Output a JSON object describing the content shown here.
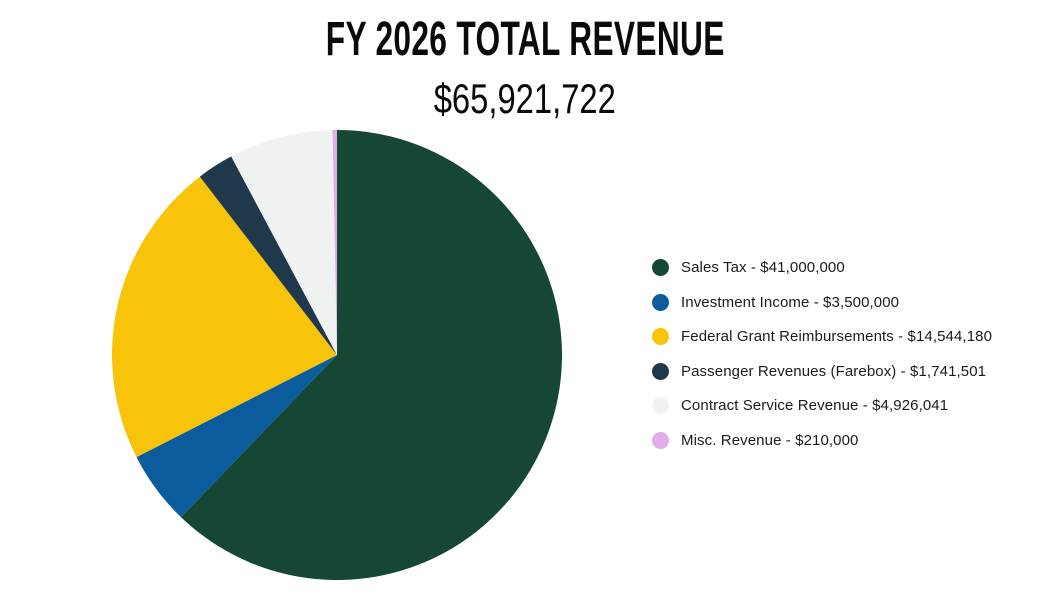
{
  "page": {
    "background": "#ffffff"
  },
  "chart_data": {
    "type": "pie",
    "title": "FY 2026 TOTAL REVENUE",
    "subtitle": "$65,921,722",
    "total": 65921722,
    "start_angle_deg": 0,
    "direction": "clockwise",
    "legend_position": "right",
    "slices": [
      {
        "label": "Sales Tax",
        "value": 41000000,
        "display_value": "$41,000,000",
        "legend_label": "Sales Tax - $41,000,000",
        "color": "#154734"
      },
      {
        "label": "Investment Income",
        "value": 3500000,
        "display_value": "$3,500,000",
        "legend_label": "Investment Income - $3,500,000",
        "color": "#0B5C9D"
      },
      {
        "label": "Federal Grant Reimbursements",
        "value": 14544180,
        "display_value": "$14,544,180",
        "legend_label": "Federal Grant Reimbursements - $14,544,180",
        "color": "#F7C40A"
      },
      {
        "label": "Passenger Revenues (Farebox)",
        "value": 1741501,
        "display_value": "$1,741,501",
        "legend_label": "Passenger Revenues (Farebox) - $1,741,501",
        "color": "#20384C"
      },
      {
        "label": "Contract Service Revenue",
        "value": 4926041,
        "display_value": "$4,926,041",
        "legend_label": "Contract Service Revenue - $4,926,041",
        "color": "#F0F2F2"
      },
      {
        "label": "Misc. Revenue",
        "value": 210000,
        "display_value": "$210,000",
        "legend_label": "Misc. Revenue - $210,000",
        "color": "#E2AEEA"
      }
    ]
  }
}
